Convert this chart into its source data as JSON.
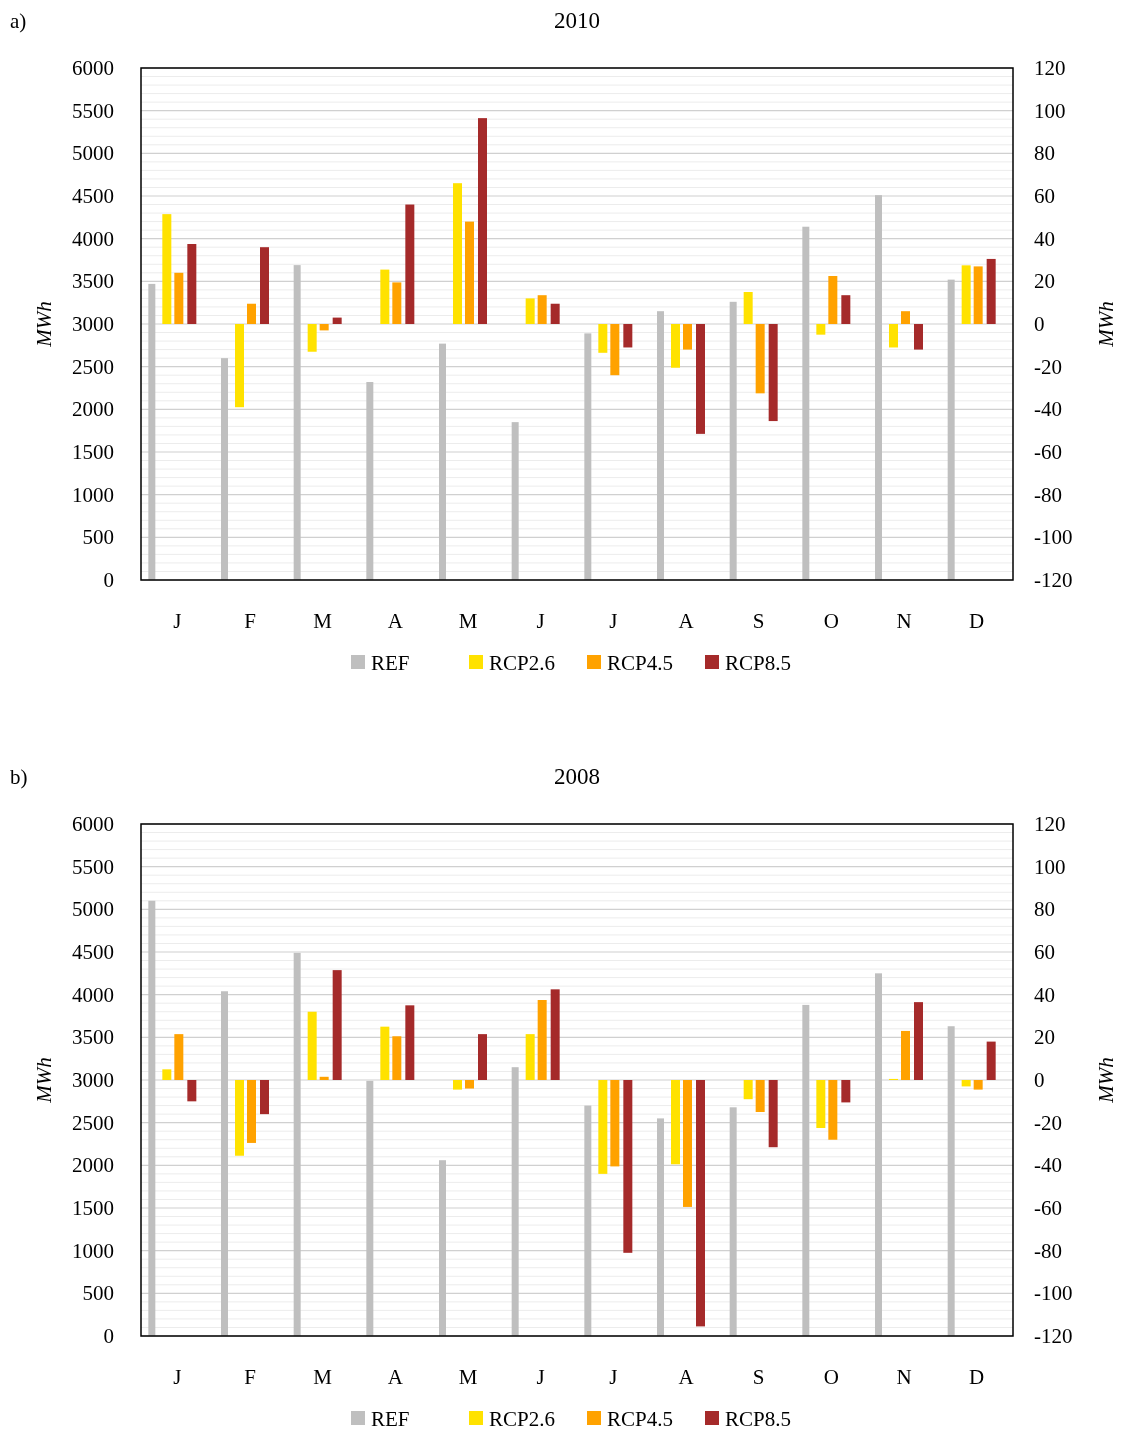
{
  "chart_data": [
    {
      "type": "bar",
      "title": "2010",
      "annotations": [
        "a)"
      ],
      "ylabel": "MWh",
      "y2label": "MWh",
      "categories": [
        "J",
        "F",
        "M",
        "A",
        "M",
        "J",
        "J",
        "A",
        "S",
        "O",
        "N",
        "D"
      ],
      "series": [
        {
          "name": "REF",
          "color": "#bfbfbf",
          "values": [
            3470,
            2600,
            3690,
            2320,
            2770,
            1850,
            2890,
            3150,
            3260,
            4140,
            4510,
            3520
          ]
        },
        {
          "name": "RCP2.6",
          "color": "#ffe200",
          "axis": "y2",
          "values": [
            51.5,
            -39,
            -13,
            25.5,
            66,
            12,
            -13.5,
            -20.5,
            15,
            -5,
            -11,
            27.5
          ]
        },
        {
          "name": "RCP4.5",
          "color": "#ffa200",
          "axis": "y2",
          "values": [
            24,
            9.5,
            -3,
            19.5,
            48,
            13.5,
            -24,
            -12,
            -32.5,
            22.5,
            6,
            27
          ]
        },
        {
          "name": "RCP8.5",
          "color": "#a52a2a",
          "axis": "y2",
          "values": [
            37.5,
            36,
            3,
            56,
            96.5,
            9.5,
            -11,
            -51.5,
            -45.5,
            13.5,
            -12,
            30.5
          ]
        }
      ],
      "ylim": [
        0,
        6000
      ],
      "yticks": [
        0,
        500,
        1000,
        1500,
        2000,
        2500,
        3000,
        3500,
        4000,
        4500,
        5000,
        5500,
        6000
      ],
      "y2lim": [
        -120,
        120
      ],
      "y2ticks": [
        -120,
        -100,
        -80,
        -60,
        -40,
        -20,
        0,
        20,
        40,
        60,
        80,
        100,
        120
      ],
      "grid": "y",
      "legend": "bottom"
    },
    {
      "type": "bar",
      "title": "2008",
      "annotations": [
        "b)"
      ],
      "ylabel": "MWh",
      "y2label": "MWh",
      "categories": [
        "J",
        "F",
        "M",
        "A",
        "M",
        "J",
        "J",
        "A",
        "S",
        "O",
        "N",
        "D"
      ],
      "series": [
        {
          "name": "REF",
          "color": "#bfbfbf",
          "values": [
            5100,
            4040,
            4490,
            2990,
            2060,
            3150,
            2700,
            2550,
            2680,
            3880,
            4250,
            3630
          ]
        },
        {
          "name": "RCP2.6",
          "color": "#ffe200",
          "axis": "y2",
          "values": [
            5,
            -35.5,
            32,
            25,
            -4.5,
            21.5,
            -44,
            -39.5,
            -9,
            -22.5,
            0.5,
            -3
          ]
        },
        {
          "name": "RCP4.5",
          "color": "#ffa200",
          "axis": "y2",
          "values": [
            21.5,
            -29.5,
            1.5,
            20.5,
            -4,
            37.5,
            -40.5,
            -59.5,
            -15,
            -28,
            23,
            -4.5
          ]
        },
        {
          "name": "RCP8.5",
          "color": "#a52a2a",
          "axis": "y2",
          "values": [
            -10,
            -16,
            51.5,
            35,
            21.5,
            42.5,
            -81,
            -115.5,
            -31.5,
            -10.5,
            36.5,
            18
          ]
        }
      ],
      "ylim": [
        0,
        6000
      ],
      "yticks": [
        0,
        500,
        1000,
        1500,
        2000,
        2500,
        3000,
        3500,
        4000,
        4500,
        5000,
        5500,
        6000
      ],
      "y2lim": [
        -120,
        120
      ],
      "y2ticks": [
        -120,
        -100,
        -80,
        -60,
        -40,
        -20,
        0,
        20,
        40,
        60,
        80,
        100,
        120
      ],
      "grid": "y",
      "legend": "bottom"
    }
  ]
}
